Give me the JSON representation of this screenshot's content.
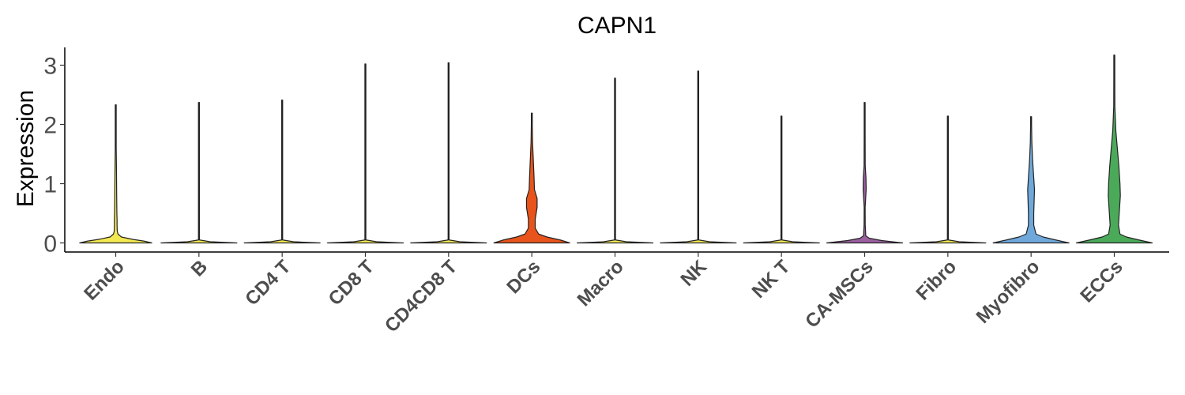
{
  "chart_data": {
    "type": "violin",
    "title": "CAPN1",
    "xlabel": "",
    "ylabel": "Expression",
    "ylim": [
      -0.15,
      3.3
    ],
    "yticks": [
      "0",
      "1",
      "2",
      "3"
    ],
    "grid": false,
    "legend": "none",
    "categories": [
      "Endo",
      "B",
      "CD4 T",
      "CD8 T",
      "CD4CD8 T",
      "DCs",
      "Macro",
      "NK",
      "NK T",
      "CA-MSCs",
      "Fibro",
      "Myofibro",
      "ECCs"
    ],
    "series": [
      {
        "category": "Endo",
        "color": "#F2E852",
        "max": 2.33,
        "density": [
          [
            0,
            0.95
          ],
          [
            0.03,
            0.75
          ],
          [
            0.06,
            0.45
          ],
          [
            0.1,
            0.15
          ],
          [
            0.15,
            0.06
          ],
          [
            0.2,
            0.04
          ],
          [
            0.3,
            0.035
          ],
          [
            0.4,
            0.035
          ],
          [
            0.5,
            0.03
          ],
          [
            0.8,
            0.025
          ],
          [
            1.2,
            0.02
          ],
          [
            1.6,
            0.012
          ],
          [
            2.0,
            0.005
          ],
          [
            2.33,
            0.002
          ]
        ]
      },
      {
        "category": "B",
        "color": "#F2E852",
        "max": 2.37,
        "density": [
          [
            0,
            1.0
          ],
          [
            0.02,
            0.3
          ],
          [
            0.05,
            0.004
          ],
          [
            2.37,
            0.002
          ]
        ]
      },
      {
        "category": "CD4 T",
        "color": "#F2E852",
        "max": 2.41,
        "density": [
          [
            0,
            1.0
          ],
          [
            0.02,
            0.3
          ],
          [
            0.05,
            0.004
          ],
          [
            2.41,
            0.002
          ]
        ]
      },
      {
        "category": "CD8 T",
        "color": "#F2E852",
        "max": 3.02,
        "density": [
          [
            0,
            1.0
          ],
          [
            0.02,
            0.3
          ],
          [
            0.05,
            0.004
          ],
          [
            3.02,
            0.002
          ]
        ]
      },
      {
        "category": "CD4CD8 T",
        "color": "#F2E852",
        "max": 3.04,
        "density": [
          [
            0,
            1.0
          ],
          [
            0.02,
            0.3
          ],
          [
            0.05,
            0.004
          ],
          [
            3.04,
            0.002
          ]
        ]
      },
      {
        "category": "DCs",
        "color": "#E8541B",
        "max": 2.19,
        "density": [
          [
            0,
            1.0
          ],
          [
            0.05,
            0.75
          ],
          [
            0.1,
            0.4
          ],
          [
            0.15,
            0.18
          ],
          [
            0.25,
            0.09
          ],
          [
            0.4,
            0.09
          ],
          [
            0.6,
            0.14
          ],
          [
            0.75,
            0.14
          ],
          [
            0.9,
            0.07
          ],
          [
            1.1,
            0.06
          ],
          [
            1.4,
            0.04
          ],
          [
            1.7,
            0.02
          ],
          [
            2.0,
            0.007
          ],
          [
            2.19,
            0.002
          ]
        ]
      },
      {
        "category": "Macro",
        "color": "#F2E852",
        "max": 2.78,
        "density": [
          [
            0,
            1.0
          ],
          [
            0.02,
            0.3
          ],
          [
            0.05,
            0.004
          ],
          [
            2.78,
            0.002
          ]
        ]
      },
      {
        "category": "NK",
        "color": "#F2E852",
        "max": 2.9,
        "density": [
          [
            0,
            1.0
          ],
          [
            0.02,
            0.3
          ],
          [
            0.05,
            0.004
          ],
          [
            2.9,
            0.002
          ]
        ]
      },
      {
        "category": "NK T",
        "color": "#F2E852",
        "max": 2.14,
        "density": [
          [
            0,
            1.0
          ],
          [
            0.02,
            0.3
          ],
          [
            0.05,
            0.004
          ],
          [
            2.14,
            0.002
          ]
        ]
      },
      {
        "category": "CA-MSCs",
        "color": "#9B5FA0",
        "max": 2.37,
        "density": [
          [
            0,
            1.0
          ],
          [
            0.04,
            0.45
          ],
          [
            0.08,
            0.12
          ],
          [
            0.12,
            0.03
          ],
          [
            0.3,
            0.015
          ],
          [
            0.6,
            0.012
          ],
          [
            0.9,
            0.04
          ],
          [
            1.1,
            0.035
          ],
          [
            1.3,
            0.015
          ],
          [
            1.8,
            0.008
          ],
          [
            2.2,
            0.003
          ],
          [
            2.37,
            0.002
          ]
        ]
      },
      {
        "category": "Fibro",
        "color": "#F2E852",
        "max": 2.14,
        "density": [
          [
            0,
            1.0
          ],
          [
            0.02,
            0.3
          ],
          [
            0.05,
            0.004
          ],
          [
            2.14,
            0.002
          ]
        ]
      },
      {
        "category": "Myofibro",
        "color": "#6FA9DB",
        "max": 2.13,
        "density": [
          [
            0,
            1.0
          ],
          [
            0.05,
            0.65
          ],
          [
            0.1,
            0.32
          ],
          [
            0.15,
            0.13
          ],
          [
            0.3,
            0.07
          ],
          [
            0.5,
            0.07
          ],
          [
            0.7,
            0.08
          ],
          [
            0.9,
            0.09
          ],
          [
            1.1,
            0.07
          ],
          [
            1.4,
            0.04
          ],
          [
            1.7,
            0.02
          ],
          [
            2.0,
            0.008
          ],
          [
            2.13,
            0.002
          ]
        ]
      },
      {
        "category": "ECCs",
        "color": "#4BAA5A",
        "max": 3.17,
        "density": [
          [
            0,
            1.0
          ],
          [
            0.05,
            0.65
          ],
          [
            0.1,
            0.32
          ],
          [
            0.15,
            0.15
          ],
          [
            0.3,
            0.11
          ],
          [
            0.5,
            0.13
          ],
          [
            0.8,
            0.16
          ],
          [
            1.0,
            0.15
          ],
          [
            1.3,
            0.12
          ],
          [
            1.6,
            0.08
          ],
          [
            1.9,
            0.04
          ],
          [
            2.3,
            0.015
          ],
          [
            2.8,
            0.005
          ],
          [
            3.17,
            0.002
          ]
        ]
      }
    ]
  }
}
